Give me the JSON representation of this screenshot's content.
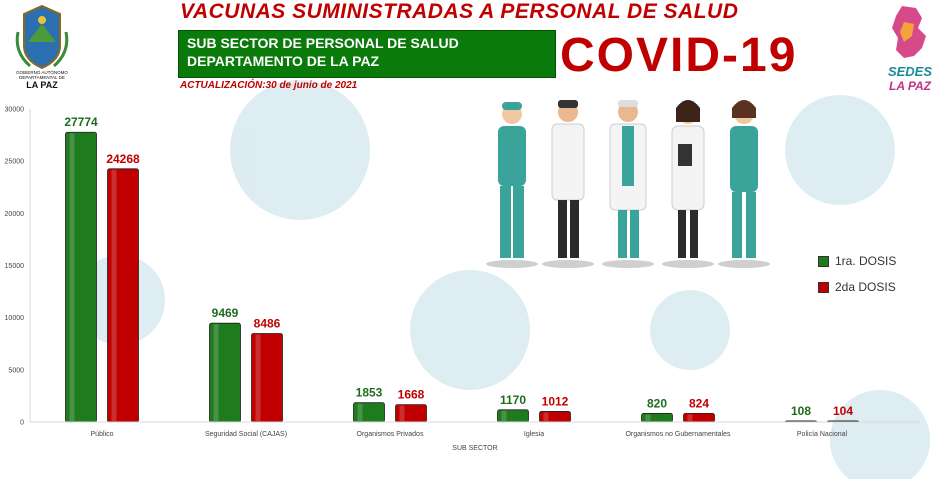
{
  "header": {
    "title": "VACUNAS SUMINISTRADAS A PERSONAL DE SALUD",
    "subtitle_line1": "SUB SECTOR DE PERSONAL DE SALUD",
    "subtitle_line2": "DEPARTAMENTO DE LA PAZ",
    "covid_label": "COVID-19",
    "update_text": "ACTUALIZACIÓN:30 de junio de 2021"
  },
  "logos": {
    "left_caption_1": "GOBIERNO AUTÓNOMO",
    "left_caption_2": "DEPARTAMENTAL DE",
    "left_caption_3": "LA PAZ",
    "right_caption_1": "SEDES",
    "right_caption_2": "LA PAZ"
  },
  "colors": {
    "first_dose": "#1e7b1e",
    "second_dose": "#c00000",
    "header_green": "#0a7a0a",
    "title_red": "#c00000"
  },
  "chart_data": {
    "type": "bar",
    "categories": [
      "Público",
      "Seguridad Social (CAJAS)",
      "Organismos Privados",
      "Iglesia",
      "Organismos no Gubernamentales",
      "Policía Nacional"
    ],
    "series": [
      {
        "name": "1ra. DOSIS",
        "values": [
          27774,
          9469,
          1853,
          1170,
          820,
          108
        ]
      },
      {
        "name": "2da DOSIS",
        "values": [
          24268,
          8486,
          1668,
          1012,
          824,
          104
        ]
      }
    ],
    "xlabel": "SUB SECTOR",
    "ylabel": "",
    "ylim": [
      0,
      30000
    ],
    "yticks": [
      0,
      5000,
      10000,
      15000,
      20000,
      25000,
      30000
    ],
    "grid": false,
    "legend_position": "right"
  }
}
